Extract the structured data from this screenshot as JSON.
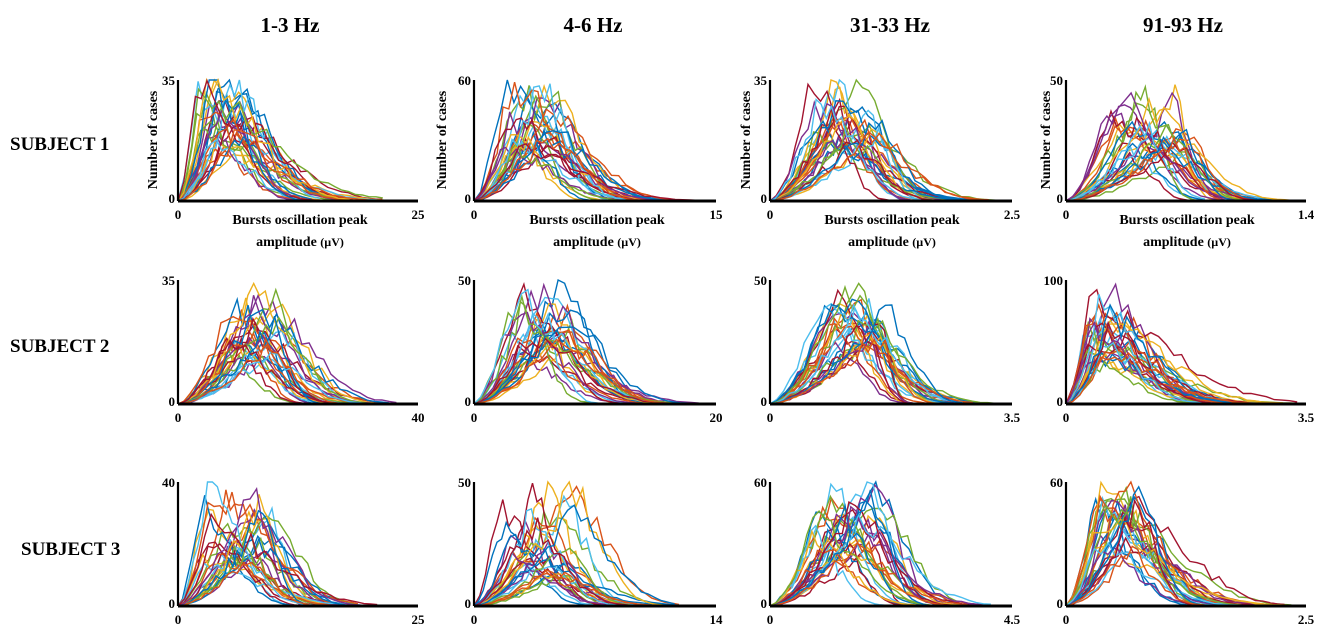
{
  "column_titles": [
    "1-3 Hz",
    "4-6 Hz",
    "31-33 Hz",
    "91-93 Hz"
  ],
  "row_titles": [
    "SUBJECT 1",
    "SUBJECT 2",
    "SUBJECT 3"
  ],
  "ylabel": "Number of cases",
  "xlabel_line1": "Bursts oscillation peak",
  "xlabel_line2": "amplitude",
  "xlabel_unit": "(µV)",
  "series_colors": [
    "#0072bd",
    "#d95319",
    "#edb120",
    "#7e2f8e",
    "#77ac30",
    "#4dbeee",
    "#a2142f"
  ],
  "chart_data": [
    {
      "type": "line",
      "row": 0,
      "col": 0,
      "xlim": [
        0,
        25
      ],
      "ylim": [
        0,
        35
      ],
      "xtick_labels": [
        "0",
        "25"
      ],
      "ytick_labels": [
        "0",
        "35"
      ],
      "series_count": 30,
      "peak_x_range": [
        1.5,
        6
      ],
      "peak_y_range": [
        12,
        34
      ],
      "tail_x": 22
    },
    {
      "type": "line",
      "row": 0,
      "col": 1,
      "xlim": [
        0,
        15
      ],
      "ylim": [
        0,
        60
      ],
      "xtick_labels": [
        "0",
        "15"
      ],
      "ytick_labels": [
        "0",
        "60"
      ],
      "series_count": 30,
      "peak_x_range": [
        1.5,
        4.5
      ],
      "peak_y_range": [
        25,
        58
      ],
      "tail_x": 14
    },
    {
      "type": "line",
      "row": 0,
      "col": 2,
      "xlim": [
        0,
        2.5
      ],
      "ylim": [
        0,
        35
      ],
      "xtick_labels": [
        "0",
        "2.5"
      ],
      "ytick_labels": [
        "0",
        "35"
      ],
      "series_count": 30,
      "peak_x_range": [
        0.4,
        1.1
      ],
      "peak_y_range": [
        15,
        34
      ],
      "tail_x": 2.4
    },
    {
      "type": "line",
      "row": 0,
      "col": 3,
      "xlim": [
        0,
        1.4
      ],
      "ylim": [
        0,
        50
      ],
      "xtick_labels": [
        "0",
        "1.4"
      ],
      "ytick_labels": [
        "0",
        "50"
      ],
      "series_count": 30,
      "peak_x_range": [
        0.22,
        0.7
      ],
      "peak_y_range": [
        18,
        47
      ],
      "tail_x": 1.35
    },
    {
      "type": "line",
      "row": 1,
      "col": 0,
      "xlim": [
        0,
        40
      ],
      "ylim": [
        0,
        35
      ],
      "xtick_labels": [
        "0",
        "40"
      ],
      "ytick_labels": [
        "0",
        "35"
      ],
      "series_count": 30,
      "peak_x_range": [
        7,
        16
      ],
      "peak_y_range": [
        12,
        33
      ],
      "tail_x": 38
    },
    {
      "type": "line",
      "row": 1,
      "col": 1,
      "xlim": [
        0,
        20
      ],
      "ylim": [
        0,
        50
      ],
      "xtick_labels": [
        "0",
        "20"
      ],
      "ytick_labels": [
        "0",
        "50"
      ],
      "series_count": 30,
      "peak_x_range": [
        2.5,
        7.5
      ],
      "peak_y_range": [
        20,
        47
      ],
      "tail_x": 19
    },
    {
      "type": "line",
      "row": 1,
      "col": 2,
      "xlim": [
        0,
        3.5
      ],
      "ylim": [
        0,
        50
      ],
      "xtick_labels": [
        "0",
        "3.5"
      ],
      "ytick_labels": [
        "0",
        "50"
      ],
      "series_count": 30,
      "peak_x_range": [
        0.7,
        1.7
      ],
      "peak_y_range": [
        22,
        46
      ],
      "tail_x": 3.4
    },
    {
      "type": "line",
      "row": 1,
      "col": 3,
      "xlim": [
        0,
        3.5
      ],
      "ylim": [
        0,
        100
      ],
      "xtick_labels": [
        "0",
        "3.5"
      ],
      "ytick_labels": [
        "0",
        "100"
      ],
      "series_count": 30,
      "peak_x_range": [
        0.25,
        0.65
      ],
      "peak_y_range": [
        30,
        90
      ],
      "tail_x": 3.4
    },
    {
      "type": "line",
      "row": 2,
      "col": 0,
      "xlim": [
        0,
        25
      ],
      "ylim": [
        0,
        40
      ],
      "xtick_labels": [
        "0",
        "25"
      ],
      "ytick_labels": [
        "0",
        "40"
      ],
      "series_count": 30,
      "peak_x_range": [
        2,
        9
      ],
      "peak_y_range": [
        12,
        38
      ],
      "tail_x": 22
    },
    {
      "type": "line",
      "row": 2,
      "col": 1,
      "xlim": [
        0,
        14
      ],
      "ylim": [
        0,
        50
      ],
      "xtick_labels": [
        "0",
        "14"
      ],
      "ytick_labels": [
        "0",
        "50"
      ],
      "series_count": 30,
      "peak_x_range": [
        1.2,
        5.5
      ],
      "peak_y_range": [
        10,
        46
      ],
      "tail_x": 13
    },
    {
      "type": "line",
      "row": 2,
      "col": 2,
      "xlim": [
        0,
        4.5
      ],
      "ylim": [
        0,
        60
      ],
      "xtick_labels": [
        "0",
        "4.5"
      ],
      "ytick_labels": [
        "0",
        "60"
      ],
      "series_count": 30,
      "peak_x_range": [
        0.7,
        1.9
      ],
      "peak_y_range": [
        25,
        56
      ],
      "tail_x": 4.2
    },
    {
      "type": "line",
      "row": 2,
      "col": 3,
      "xlim": [
        0,
        2.5
      ],
      "ylim": [
        0,
        60
      ],
      "xtick_labels": [
        "0",
        "2.5"
      ],
      "ytick_labels": [
        "0",
        "60"
      ],
      "series_count": 30,
      "peak_x_range": [
        0.25,
        0.75
      ],
      "peak_y_range": [
        25,
        57
      ],
      "tail_x": 2.4
    }
  ]
}
